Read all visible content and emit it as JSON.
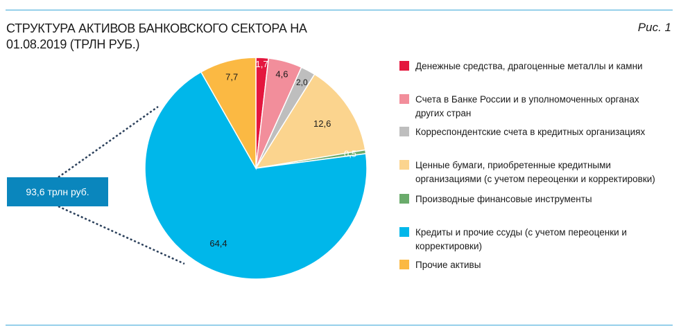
{
  "header": {
    "title": "СТРУКТУРА АКТИВОВ БАНКОВСКОГО СЕКТОРА НА 01.08.2019 (ТРЛН РУБ.)",
    "figure_label": "Рис. 1"
  },
  "callout": {
    "label": "93,6 трлн руб."
  },
  "chart_data": {
    "type": "pie",
    "title": "СТРУКТУРА АКТИВОВ БАНКОВСКОГО СЕКТОРА НА 01.08.2019 (ТРЛН РУБ.)",
    "total_label": "93,6 трлн руб.",
    "legend_position": "right",
    "slices": [
      {
        "name": "Денежные средства, драгоценные металлы и камни",
        "value": 1.7,
        "label": "1,7",
        "color": "#e4173e"
      },
      {
        "name": "Счета в Банке России и в уполномоченных органах других стран",
        "value": 4.6,
        "label": "4,6",
        "color": "#f28e9b"
      },
      {
        "name": "Корреспондентские счета в кредитных организациях",
        "value": 2.0,
        "label": "2,0",
        "color": "#bebebe"
      },
      {
        "name": "Ценные бумаги, приобретенные кредитными организациями (с учетом переоценки и корректировки)",
        "value": 12.6,
        "label": "12,6",
        "color": "#fbd48e"
      },
      {
        "name": "Производные финансовые инструменты",
        "value": 0.5,
        "label": "0,5",
        "color": "#6aab6b"
      },
      {
        "name": "Кредиты и прочие ссуды (с учетом переоценки и корректировки)",
        "value": 64.4,
        "label": "64,4",
        "color": "#00b7ea"
      },
      {
        "name": "Прочие активы",
        "value": 7.7,
        "label": "7,7",
        "color": "#fbb943"
      }
    ]
  }
}
